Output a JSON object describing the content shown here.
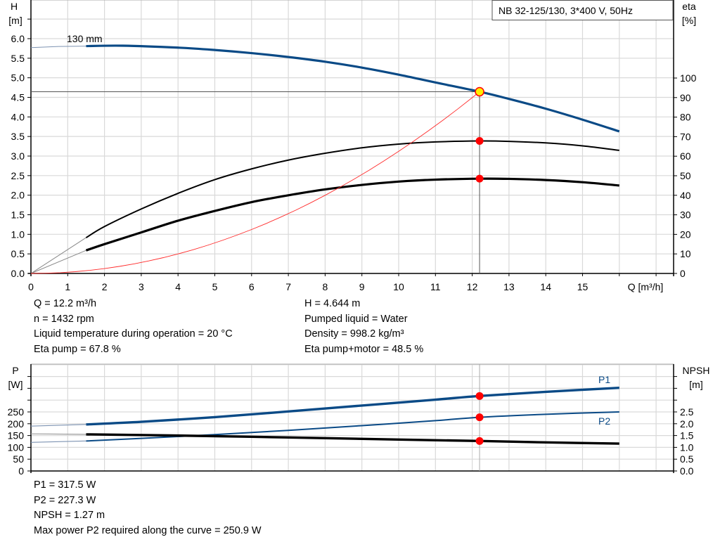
{
  "chart_data": [
    {
      "type": "line",
      "title": "NB 32-125/130, 3*400 V, 50Hz",
      "xlabel": "Q [m³/h]",
      "ylabel_left": [
        "H",
        "[m]"
      ],
      "ylabel_right": [
        "eta",
        "[%]"
      ],
      "xlim": [
        0,
        17.5
      ],
      "ylim_left": [
        0,
        7
      ],
      "ylim_right_eta": [
        0,
        100
      ],
      "x_ticks": [
        "0",
        "1",
        "2",
        "3",
        "4",
        "5",
        "6",
        "7",
        "8",
        "9",
        "10",
        "11",
        "12",
        "13",
        "14",
        "15"
      ],
      "y_ticks_left": [
        "0.0",
        "0.5",
        "1.0",
        "1.5",
        "2.0",
        "2.5",
        "3.0",
        "3.5",
        "4.0",
        "4.5",
        "5.0",
        "5.5",
        "6.0"
      ],
      "y_ticks_right": [
        "0",
        "10",
        "20",
        "30",
        "40",
        "50",
        "60",
        "70",
        "80",
        "90",
        "100"
      ],
      "grid": true,
      "curve_label": "130 mm",
      "series": [
        {
          "id": "head",
          "axis": "H",
          "color": "#0a4a86",
          "extrapolated": [
            [
              0,
              5.77
            ],
            [
              0.75,
              5.8
            ],
            [
              1.5,
              5.81
            ]
          ],
          "points": [
            [
              1.5,
              5.81
            ],
            [
              2.5,
              5.82
            ],
            [
              4,
              5.77
            ],
            [
              5,
              5.71
            ],
            [
              6,
              5.63
            ],
            [
              7,
              5.53
            ],
            [
              8,
              5.41
            ],
            [
              9,
              5.26
            ],
            [
              10,
              5.08
            ],
            [
              11,
              4.88
            ],
            [
              12.2,
              4.644
            ],
            [
              13,
              4.46
            ],
            [
              14,
              4.21
            ],
            [
              15,
              3.93
            ],
            [
              16,
              3.63
            ]
          ]
        },
        {
          "id": "eta-pump",
          "axis": "eta",
          "color": "#000000",
          "extrapolated": [
            [
              0,
              0
            ],
            [
              1.5,
              18.3
            ]
          ],
          "points": [
            [
              1.5,
              18.3
            ],
            [
              2,
              24
            ],
            [
              3,
              33
            ],
            [
              4,
              41
            ],
            [
              5,
              48
            ],
            [
              6,
              53.5
            ],
            [
              7,
              58
            ],
            [
              8,
              61.5
            ],
            [
              9,
              64.3
            ],
            [
              10,
              66.2
            ],
            [
              11,
              67.3
            ],
            [
              12.2,
              67.8
            ],
            [
              13,
              67.6
            ],
            [
              14,
              66.8
            ],
            [
              15,
              65.3
            ],
            [
              16,
              63
            ]
          ]
        },
        {
          "id": "eta-pump-motor",
          "axis": "eta",
          "color": "#000000",
          "extrapolated": [
            [
              0,
              0
            ],
            [
              1.5,
              11.8
            ]
          ],
          "points": [
            [
              1.5,
              11.8
            ],
            [
              2,
              15
            ],
            [
              3,
              21
            ],
            [
              4,
              27
            ],
            [
              5,
              32
            ],
            [
              6,
              36.5
            ],
            [
              7,
              40
            ],
            [
              8,
              43
            ],
            [
              9,
              45.3
            ],
            [
              10,
              47
            ],
            [
              11,
              48
            ],
            [
              12.2,
              48.5
            ],
            [
              13,
              48.4
            ],
            [
              14,
              47.8
            ],
            [
              15,
              46.7
            ],
            [
              16,
              45
            ]
          ]
        },
        {
          "id": "system-curve",
          "axis": "H",
          "color": "#ff2a2a",
          "quadratic_through": [
            12.2,
            4.644
          ]
        }
      ],
      "duty_point": {
        "Q": 12.2,
        "H": 4.644,
        "eta_pump": 67.8,
        "eta_pump_motor": 48.5
      }
    },
    {
      "type": "line",
      "ylabel_left": [
        "P",
        "[W]"
      ],
      "ylabel_right": [
        "NPSH",
        "[m]"
      ],
      "xlim": [
        0,
        17.5
      ],
      "ylim_left": [
        0,
        450
      ],
      "ylim_right": [
        0,
        4.5
      ],
      "y_ticks_left": [
        "0",
        "50",
        "100",
        "150",
        "200",
        "250"
      ],
      "y_ticks_right": [
        "0.0",
        "0.5",
        "1.0",
        "1.5",
        "2.0",
        "2.5"
      ],
      "grid": true,
      "series": [
        {
          "id": "P1",
          "name": "P1",
          "axis": "P",
          "color": "#0a4a86",
          "extrapolated": [
            [
              0,
              190
            ],
            [
              1.5,
              197
            ]
          ],
          "points": [
            [
              1.5,
              197
            ],
            [
              3,
              208
            ],
            [
              5,
              228
            ],
            [
              7,
              252
            ],
            [
              9,
              277
            ],
            [
              11,
              302
            ],
            [
              12.2,
              317.5
            ],
            [
              14,
              335
            ],
            [
              16,
              352
            ]
          ]
        },
        {
          "id": "P2",
          "name": "P2",
          "axis": "P",
          "color": "#0a4a86",
          "extrapolated": [
            [
              0,
              121
            ],
            [
              1.5,
              127
            ]
          ],
          "points": [
            [
              1.5,
              127
            ],
            [
              3,
              138
            ],
            [
              5,
              154
            ],
            [
              7,
              172
            ],
            [
              9,
              192
            ],
            [
              11,
              213
            ],
            [
              12.2,
              227.3
            ],
            [
              14,
              240
            ],
            [
              16,
              250
            ]
          ]
        },
        {
          "id": "NPSH",
          "axis": "NPSH",
          "color": "#000000",
          "extrapolated": [
            [
              0,
              1.57
            ],
            [
              1.5,
              1.55
            ]
          ],
          "points": [
            [
              1.5,
              1.55
            ],
            [
              4,
              1.5
            ],
            [
              7,
              1.42
            ],
            [
              10,
              1.33
            ],
            [
              12.2,
              1.27
            ],
            [
              14,
              1.21
            ],
            [
              16,
              1.16
            ]
          ]
        }
      ],
      "duty_point": {
        "P1": 317.5,
        "P2": 227.3,
        "NPSH": 1.27
      }
    }
  ],
  "info_top": {
    "left": [
      "Q = 12.2 m³/h",
      "n = 1432 rpm",
      "Liquid temperature during operation = 20 °C",
      "Eta pump = 67.8 %"
    ],
    "right": [
      "H = 4.644 m",
      "Pumped liquid = Water",
      "Density = 998.2 kg/m³",
      "Eta pump+motor = 48.5 %"
    ]
  },
  "info_bottom": [
    "P1 = 317.5 W",
    "P2 = 227.3 W",
    "NPSH = 1.27 m",
    "Max power P2 required along the curve = 250.9 W"
  ]
}
